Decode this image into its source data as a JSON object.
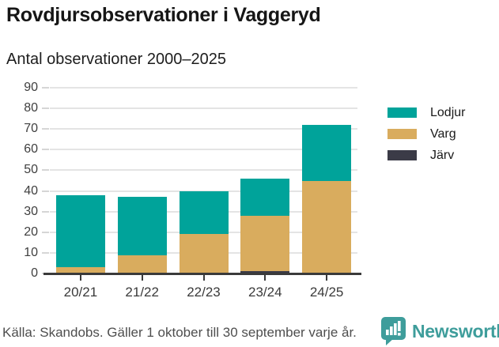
{
  "header": {
    "title": "Rovdjursobservationer i Vaggeryd",
    "subtitle": "Antal observationer 2000–2025"
  },
  "chart_data": {
    "type": "bar",
    "stacked": true,
    "title": "Rovdjursobservationer i Vaggeryd",
    "subtitle": "Antal observationer 2000–2025",
    "xlabel": "",
    "ylabel": "",
    "categories": [
      "20/21",
      "21/22",
      "22/23",
      "23/24",
      "24/25"
    ],
    "series": [
      {
        "name": "Lodjur",
        "color": "#00a39a",
        "values": [
          35,
          28,
          21,
          18,
          27
        ]
      },
      {
        "name": "Varg",
        "color": "#d9ac5e",
        "values": [
          3,
          9,
          19,
          27,
          45
        ]
      },
      {
        "name": "Järv",
        "color": "#3b3b47",
        "values": [
          0,
          0,
          0,
          1,
          0
        ]
      }
    ],
    "stack_order_bottom_to_top": [
      "Järv",
      "Varg",
      "Lodjur"
    ],
    "totals": [
      38,
      37,
      40,
      46,
      72
    ],
    "ylim": [
      0,
      90
    ],
    "yticks": [
      0,
      10,
      20,
      30,
      40,
      50,
      60,
      70,
      80,
      90
    ],
    "grid": true,
    "legend_position": "right"
  },
  "footer": {
    "source": "Källa: Skandobs. Gäller 1 oktober till 30 september varje år.",
    "brand": "Newsworthy",
    "brand_color": "#3e9d9b",
    "logo_icon": "bar-chart-speech-bubble-icon"
  }
}
